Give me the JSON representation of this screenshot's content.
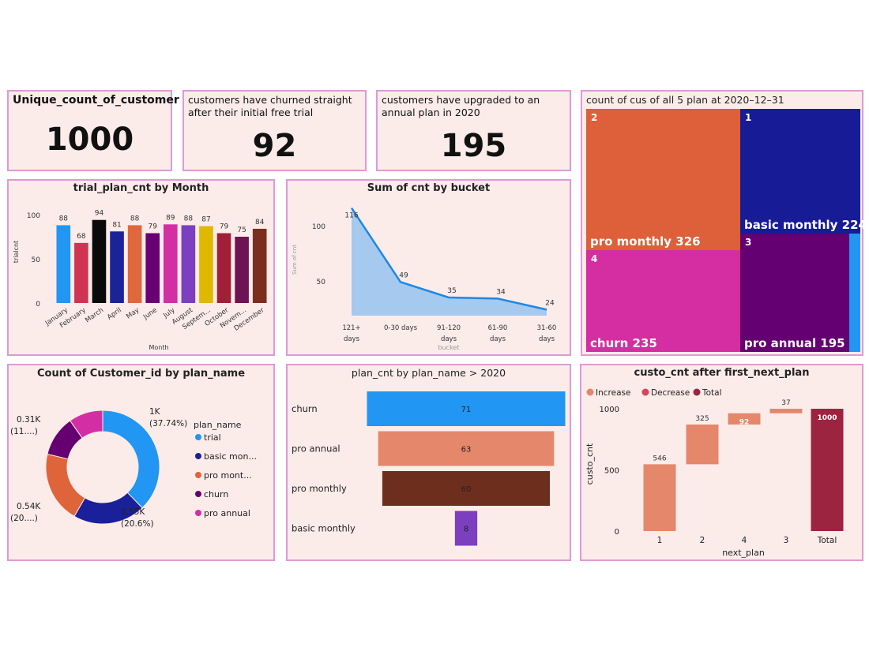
{
  "kpis": [
    {
      "title": "Unique_count_of_customer",
      "value": "1000"
    },
    {
      "title": "customers have churned straight after their initial free trial",
      "value": "92"
    },
    {
      "title": "customers have upgraded to an annual plan in 2020",
      "value": "195"
    }
  ],
  "treemap": {
    "title": "count of cus of all 5 plan at 2020–12–31",
    "items": [
      {
        "id": "2",
        "label": "pro monthly 326",
        "color": "#dd603a"
      },
      {
        "id": "1",
        "label": "basic monthly 224",
        "color": "#171b96"
      },
      {
        "id": "4",
        "label": "churn 235",
        "color": "#d42ea2"
      },
      {
        "id": "3",
        "label": "pro annual 195",
        "color": "#640071"
      },
      {
        "id": "",
        "label": "",
        "color": "#2196f3"
      }
    ]
  },
  "chart_data": [
    {
      "type": "bar",
      "title": "trial_plan_cnt by Month",
      "xlabel": "Month",
      "ylabel": "trialcnt",
      "ylim": [
        0,
        100
      ],
      "yticks": [
        "0",
        "50",
        "100"
      ],
      "categories": [
        "January",
        "February",
        "March",
        "April",
        "May",
        "June",
        "July",
        "August",
        "Septem...",
        "October",
        "Novem...",
        "December"
      ],
      "values": [
        88,
        68,
        94,
        81,
        88,
        79,
        89,
        88,
        87,
        79,
        75,
        84
      ],
      "colors": [
        "#2196f3",
        "#d03452",
        "#0a0a0a",
        "#1a2398",
        "#e0673e",
        "#690072",
        "#d42ea5",
        "#7b3fbf",
        "#e0b800",
        "#a02038",
        "#6e1452",
        "#7a2e1e"
      ]
    },
    {
      "type": "area",
      "title": "Sum of cnt by bucket",
      "xlabel": "bucket",
      "ylabel": "Sum of cnt",
      "yticks": [
        "50",
        "100"
      ],
      "categories": [
        "121+ days",
        "0-30 days",
        "91-120 days",
        "61-90 days",
        "31-60 days"
      ],
      "values": [
        116,
        49,
        35,
        34,
        24
      ],
      "color": "#1e88e5"
    },
    {
      "type": "pie",
      "title": "Count of Customer_id by plan_name",
      "legend_title": "plan_name",
      "legend": "right",
      "categories": [
        "trial",
        "basic mon...",
        "pro mont...",
        "churn",
        "pro annual"
      ],
      "values": [
        1000,
        546,
        539,
        307,
        258
      ],
      "labels": [
        [
          "1K",
          "(37.74%)"
        ],
        [
          "0.55K",
          "(20.6%)"
        ],
        [
          "0.54K",
          "(20....)"
        ],
        [
          "0.31K",
          "(11....)"
        ],
        [
          "",
          ""
        ]
      ],
      "colors": [
        "#2196f3",
        "#1a1f9a",
        "#e0643a",
        "#660070",
        "#d42ea5"
      ]
    },
    {
      "type": "bar",
      "orientation": "funnel",
      "title": "plan_cnt by plan_name > 2020",
      "categories": [
        "churn",
        "pro annual",
        "pro monthly",
        "basic monthly"
      ],
      "values": [
        71,
        63,
        60,
        8
      ],
      "colors": [
        "#2196f3",
        "#e5876a",
        "#6e2e1e",
        "#7b3fbf"
      ]
    },
    {
      "type": "bar",
      "orientation": "waterfall",
      "title": "custo_cnt after first_next_plan",
      "xlabel": "next_plan",
      "ylabel": "custo_cnt",
      "ylim": [
        0,
        1000
      ],
      "yticks": [
        "0",
        "500",
        "1000"
      ],
      "legend": [
        {
          "name": "Increase",
          "color": "#e5876a"
        },
        {
          "name": "Decrease",
          "color": "#d9435e"
        },
        {
          "name": "Total",
          "color": "#9c2440"
        }
      ],
      "categories": [
        "1",
        "2",
        "4",
        "3",
        "Total"
      ],
      "values": [
        546,
        325,
        92,
        37,
        1000
      ]
    }
  ]
}
